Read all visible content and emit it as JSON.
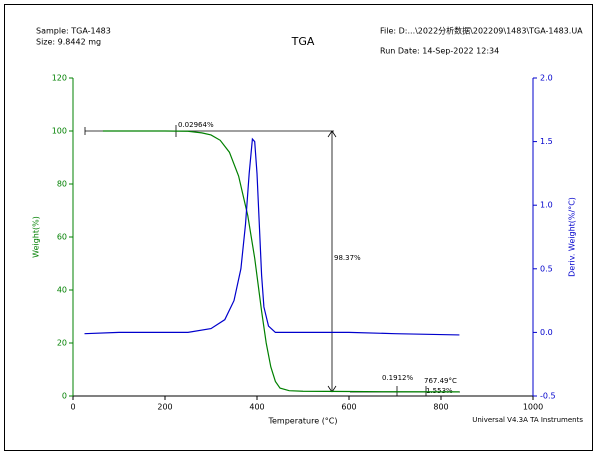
{
  "chart_data": {
    "type": "line",
    "title": "TGA",
    "header": {
      "sample": "Sample: TGA-1483",
      "size": "Size: 9.8442 mg",
      "file": "File: D:...\\2022分析数据\\202209\\1483\\TGA-1483.UA",
      "run_date": "Run Date: 14-Sep-2022 12:34"
    },
    "footer": "Universal V4.3A TA Instruments",
    "xlabel": "Temperature (°C)",
    "ylabel": "Weight(%)",
    "y2label": "Deriv. Weight(%/°C)",
    "xlim": [
      0,
      1000
    ],
    "xticks": [
      0,
      200,
      400,
      600,
      800,
      1000
    ],
    "ylim": [
      0,
      120
    ],
    "yticks": [
      0,
      20,
      40,
      60,
      80,
      100,
      120
    ],
    "y2lim": [
      -0.5,
      2.0
    ],
    "y2ticks": [
      {
        "value": -0.5,
        "label": "-0.5"
      },
      {
        "value": 0,
        "label": "0.0"
      },
      {
        "value": 0.5,
        "label": "0.5"
      },
      {
        "value": 1,
        "label": "1.0"
      },
      {
        "value": 1.5,
        "label": "1.5"
      },
      {
        "value": 2,
        "label": "2.0"
      }
    ],
    "series": [
      {
        "name": "Weight",
        "color": "#008000",
        "axis": "y",
        "x": [
          65,
          200,
          250,
          280,
          300,
          320,
          340,
          360,
          380,
          395,
          410,
          420,
          430,
          440,
          450,
          470,
          500,
          600,
          700,
          840
        ],
        "values": [
          100,
          100,
          99.9,
          99.3,
          98.5,
          96.5,
          92,
          83,
          68,
          52,
          32,
          20,
          11,
          5.5,
          3,
          2,
          1.8,
          1.7,
          1.6,
          1.55
        ]
      },
      {
        "name": "Deriv. Weight",
        "color": "#0000cc",
        "axis": "y2",
        "x": [
          25,
          100,
          250,
          300,
          330,
          350,
          365,
          375,
          383,
          390,
          395,
          400,
          405,
          410,
          415,
          425,
          440,
          600,
          700,
          840
        ],
        "values": [
          -0.01,
          0,
          0,
          0.03,
          0.1,
          0.25,
          0.5,
          0.85,
          1.25,
          1.52,
          1.5,
          1.25,
          0.85,
          0.45,
          0.2,
          0.05,
          0,
          0,
          -0.01,
          -0.02
        ]
      }
    ],
    "annotations": [
      "0.02964%",
      "98.37%",
      "0.1912%",
      "767.49°C",
      "1.553%"
    ]
  }
}
